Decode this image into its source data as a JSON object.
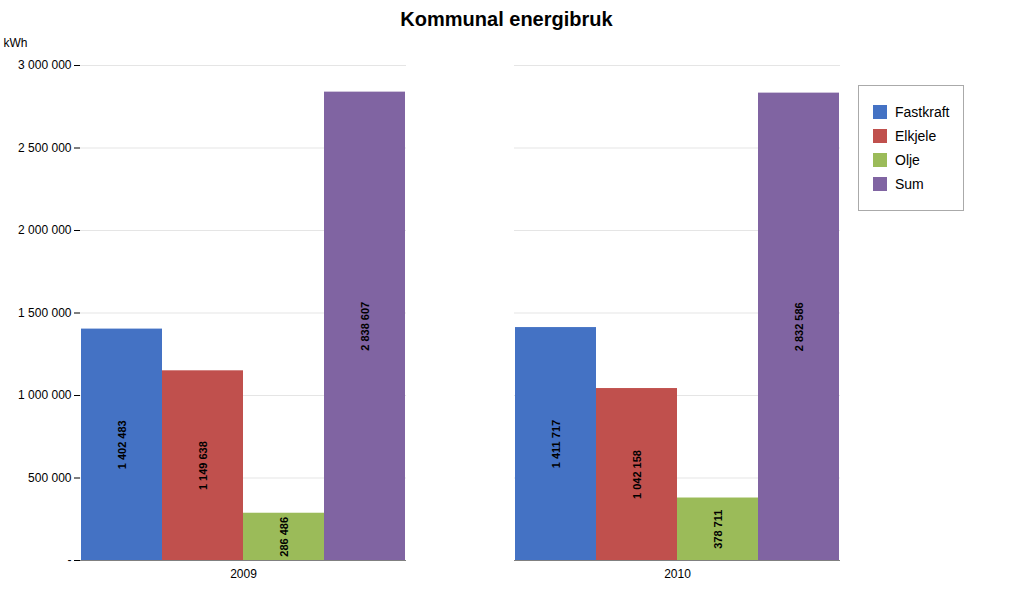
{
  "chart_data": {
    "type": "bar",
    "title": "Kommunal energibruk",
    "categories": [
      "2009",
      "2010"
    ],
    "series": [
      {
        "name": "Fastkraft",
        "color": "#4472C4",
        "values": [
          1402483,
          1411717
        ],
        "value_labels": [
          "1 402 483",
          "1 411 717"
        ]
      },
      {
        "name": "Elkjele",
        "color": "#C0504D",
        "values": [
          1149638,
          1042158
        ],
        "value_labels": [
          "1 149 638",
          "1 042 158"
        ]
      },
      {
        "name": "Olje",
        "color": "#9BBB59",
        "values": [
          286486,
          378711
        ],
        "value_labels": [
          "286 486",
          "378 711"
        ]
      },
      {
        "name": "Sum",
        "color": "#8064A2",
        "values": [
          2838607,
          2832586
        ],
        "value_labels": [
          "2 838 607",
          "2 832 586"
        ]
      }
    ],
    "ylabel": "kWh",
    "ylim": [
      0,
      3000000
    ],
    "yticks": [
      {
        "value": 0,
        "label": "-"
      },
      {
        "value": 500000,
        "label": "500 000"
      },
      {
        "value": 1000000,
        "label": "1 000 000"
      },
      {
        "value": 1500000,
        "label": "1 500 000"
      },
      {
        "value": 2000000,
        "label": "2 000 000"
      },
      {
        "value": 2500000,
        "label": "2 500 000"
      },
      {
        "value": 3000000,
        "label": "3 000 000"
      }
    ],
    "grid": true,
    "legend": "right",
    "data_labels": true
  }
}
